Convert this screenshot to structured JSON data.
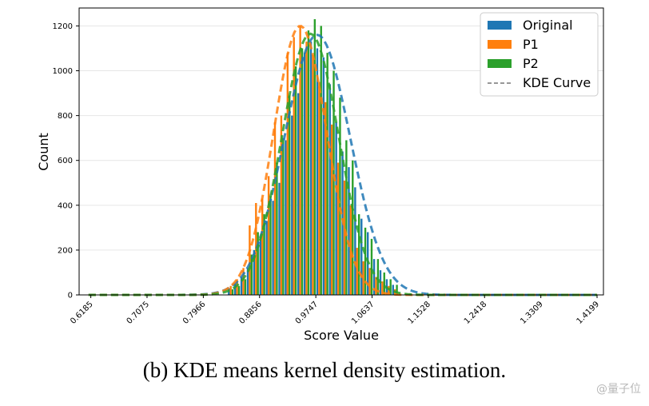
{
  "chart_data": {
    "type": "bar",
    "xlabel": "Score Value",
    "ylabel": "Count",
    "ylim": [
      0,
      1280
    ],
    "xlim": [
      0.6,
      1.43
    ],
    "yticks": [
      0,
      200,
      400,
      600,
      800,
      1000,
      1200
    ],
    "xticks": [
      "0.6185",
      "0.7075",
      "0.7966",
      "0.8856",
      "0.9747",
      "1.0637",
      "1.1528",
      "1.2418",
      "1.3309",
      "1.4199"
    ],
    "grid": "horizontal",
    "legend_position": "top-right",
    "legend": [
      "Original",
      "P1",
      "P2",
      "KDE Curve"
    ],
    "colors": {
      "Original": "#1f77b4",
      "P1": "#ff7f0e",
      "P2": "#2ca02c",
      "kde_legend": "#777777"
    },
    "x": [
      0.84,
      0.85,
      0.86,
      0.87,
      0.88,
      0.89,
      0.9,
      0.91,
      0.92,
      0.93,
      0.94,
      0.95,
      0.96,
      0.97,
      0.98,
      0.99,
      1.0,
      1.01,
      1.02,
      1.03,
      1.04,
      1.05,
      1.06,
      1.07,
      1.08,
      1.09,
      1.1
    ],
    "series": [
      {
        "name": "Original",
        "values": [
          30,
          50,
          80,
          120,
          200,
          260,
          330,
          420,
          500,
          690,
          800,
          900,
          1080,
          1130,
          1100,
          1060,
          940,
          770,
          640,
          570,
          480,
          340,
          280,
          160,
          110,
          70,
          45
        ]
      },
      {
        "name": "P1",
        "values": [
          40,
          70,
          120,
          310,
          410,
          430,
          530,
          770,
          800,
          1080,
          1150,
          1200,
          1130,
          1070,
          950,
          860,
          760,
          590,
          510,
          400,
          210,
          150,
          120,
          80,
          60,
          40,
          25
        ]
      },
      {
        "name": "P2",
        "values": [
          25,
          40,
          70,
          180,
          280,
          360,
          440,
          590,
          700,
          890,
          1020,
          1100,
          1180,
          1230,
          1200,
          1080,
          1000,
          880,
          690,
          600,
          360,
          300,
          250,
          160,
          100,
          70,
          45
        ]
      }
    ],
    "kde": [
      {
        "name": "Original",
        "mean": 0.977,
        "sd": 0.052,
        "peak": 1160
      },
      {
        "name": "P1",
        "mean": 0.95,
        "sd": 0.042,
        "peak": 1200
      },
      {
        "name": "P2",
        "mean": 0.966,
        "sd": 0.045,
        "peak": 1165
      }
    ]
  },
  "caption": "(b) KDE means kernel density estimation.",
  "watermark": "@量子位"
}
